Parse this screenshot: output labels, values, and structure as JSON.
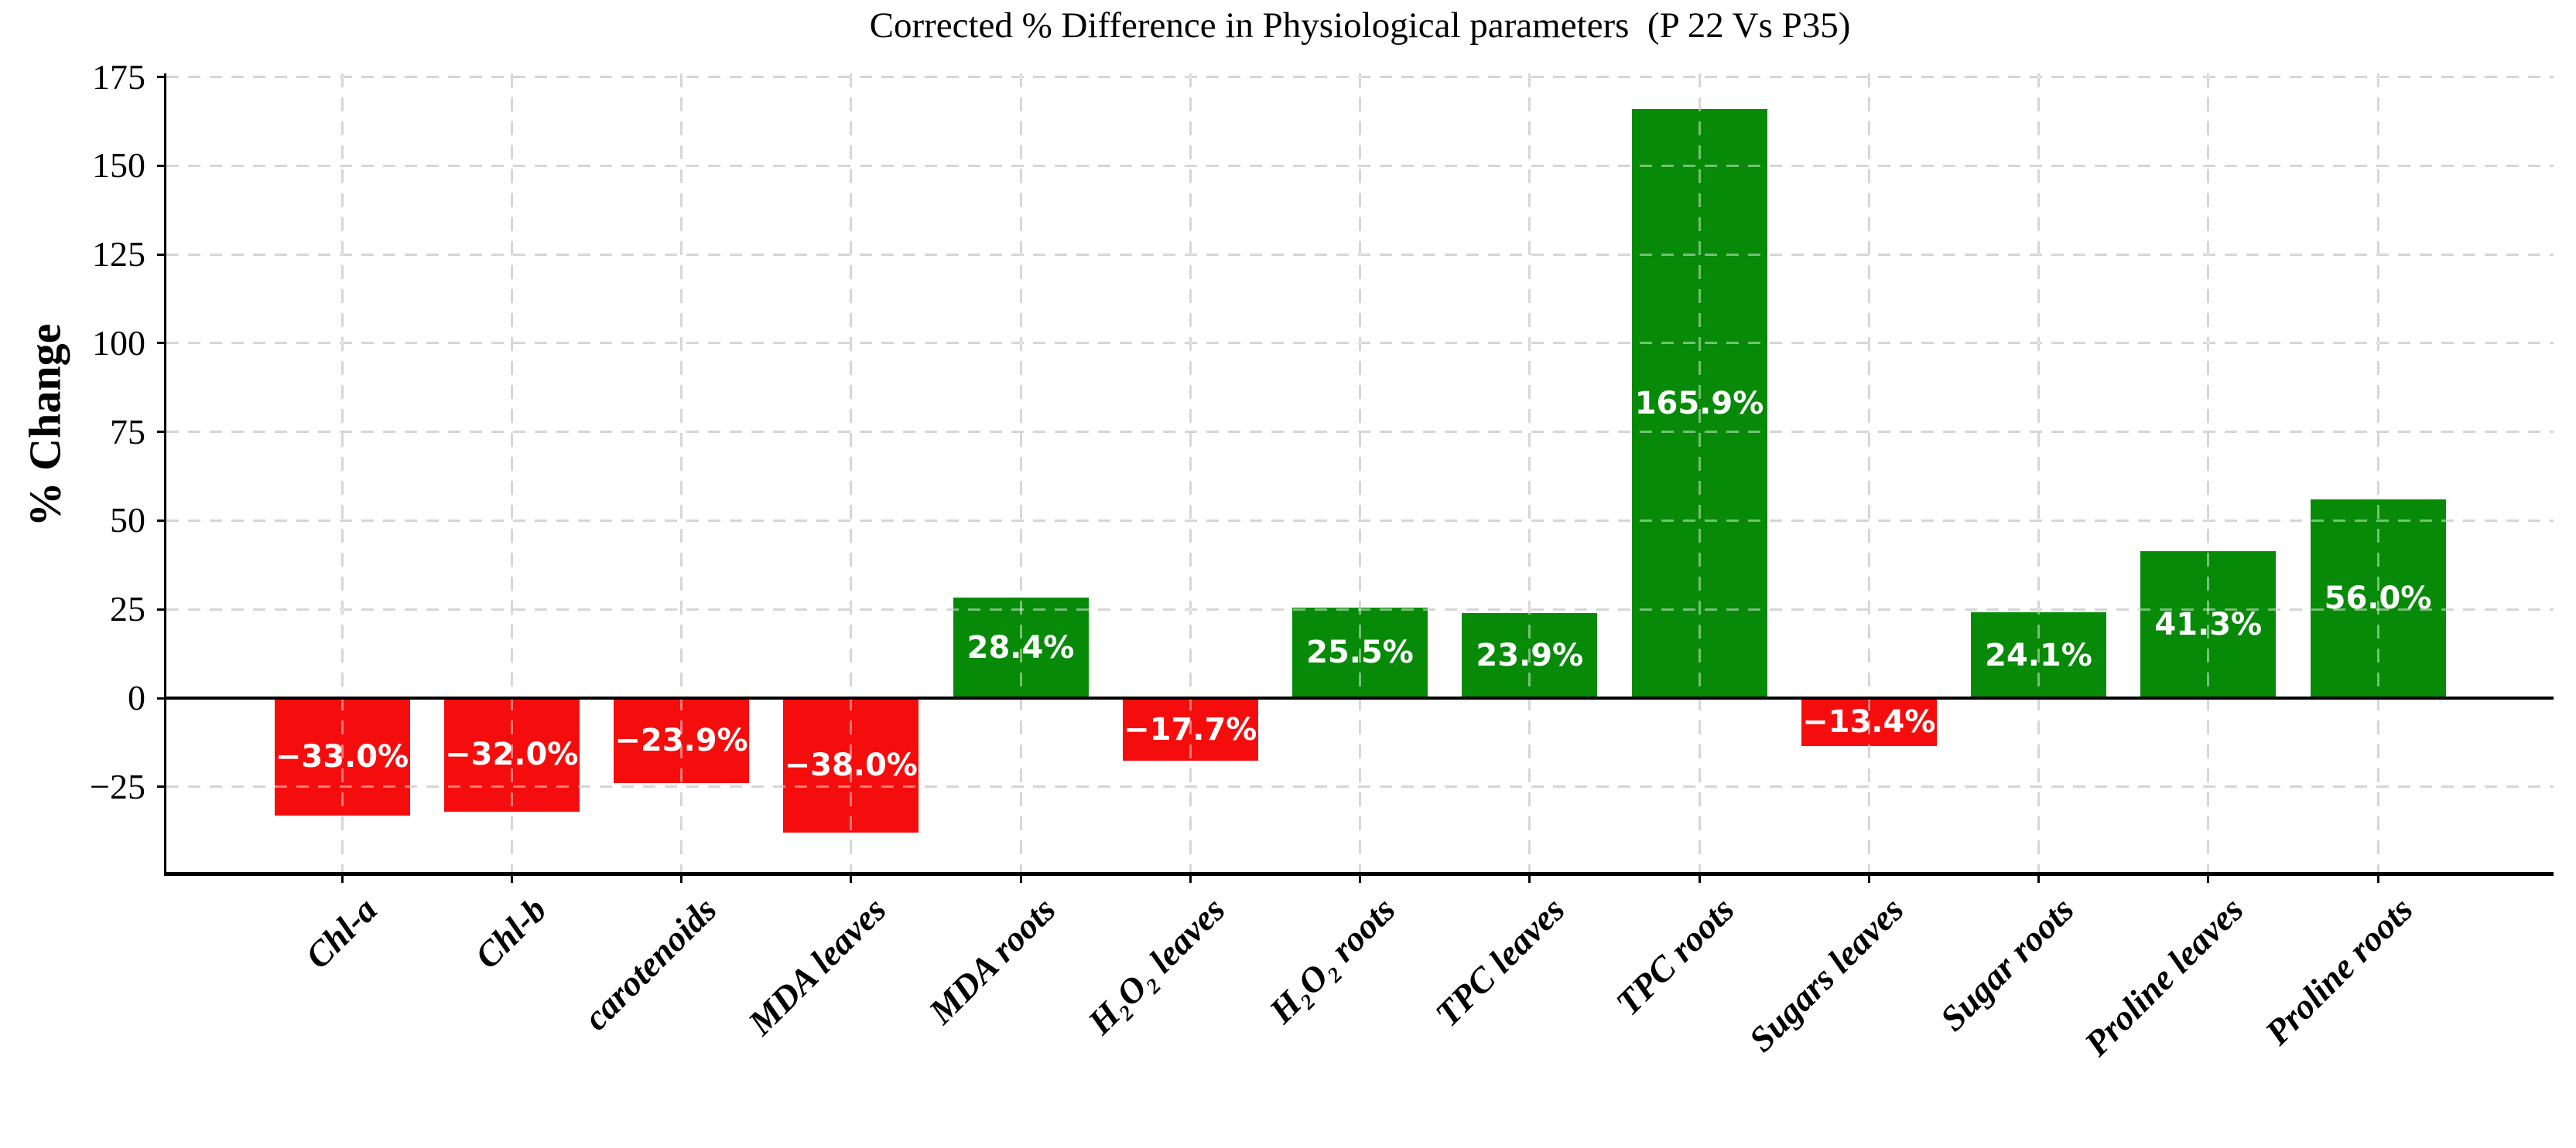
{
  "chart_data": {
    "type": "bar",
    "title": "Corrected % Difference in Physiological parameters  (P 22 Vs P35)",
    "xlabel": "",
    "ylabel": "% Change",
    "categories": [
      "Chl-a",
      "Chl-b",
      "carotenoids",
      "MDA leaves",
      "MDA roots",
      "H₂O₂ leaves",
      "H₂O₂ roots",
      "TPC leaves",
      "TPC roots",
      "Sugars leaves",
      "Sugar roots",
      "Proline leaves",
      "Proline roots"
    ],
    "values": [
      -33.0,
      -32.0,
      -23.9,
      -38.0,
      28.4,
      -17.7,
      25.5,
      23.9,
      165.9,
      -13.4,
      24.1,
      41.3,
      56.0
    ],
    "bar_labels": [
      "−33.0%",
      "−32.0%",
      "−23.9%",
      "−38.0%",
      "28.4%",
      "−17.7%",
      "25.5%",
      "23.9%",
      "165.9%",
      "−13.4%",
      "24.1%",
      "41.3%",
      "56.0%"
    ],
    "yticks": [
      -25,
      0,
      25,
      50,
      75,
      100,
      125,
      150,
      175
    ],
    "ytick_labels": [
      "−25",
      "0",
      "25",
      "50",
      "75",
      "100",
      "125",
      "150",
      "175"
    ],
    "ylim": [
      -49,
      176
    ],
    "grid": "dashed",
    "legend": "none",
    "colors": {
      "positive_bar": "#078A07",
      "negative_bar": "#F50D0D",
      "bar_label_text": "#FFFFFF",
      "grid_line": "#B5B5B5",
      "axis_line": "#000000"
    }
  }
}
